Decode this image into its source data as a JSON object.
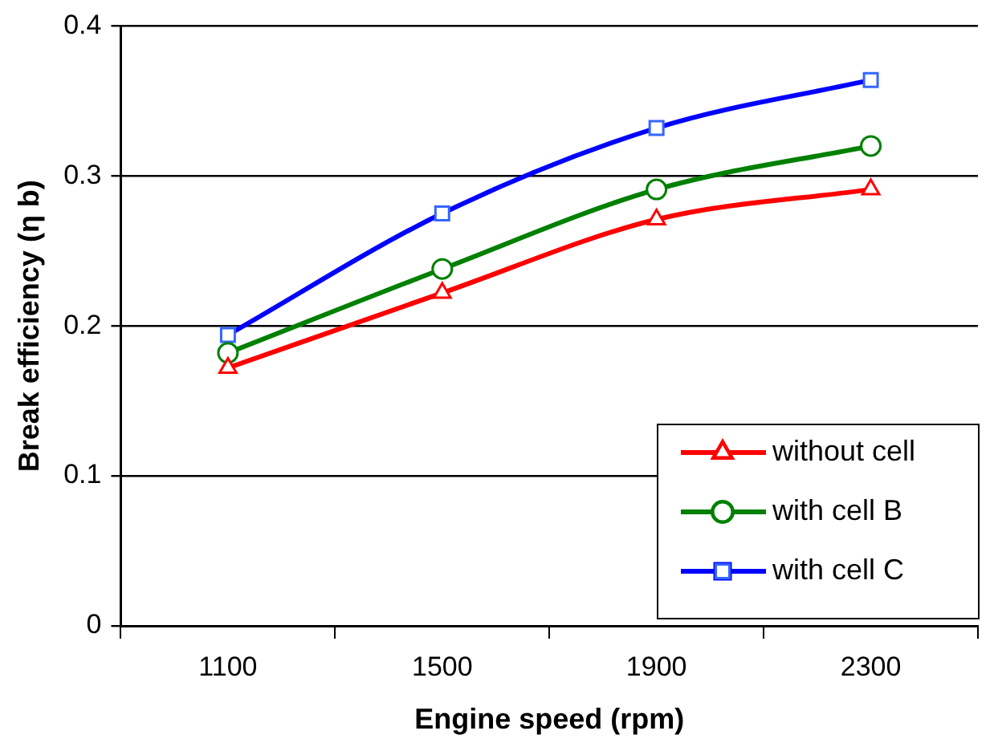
{
  "chart_data": {
    "type": "line",
    "xlabel": "Engine speed (rpm)",
    "ylabel": "Break efficiency (η b)",
    "categories": [
      "1100",
      "1500",
      "1900",
      "2300"
    ],
    "series": [
      {
        "name": "without cell",
        "color": "#ff0000",
        "marker": "triangle",
        "values": [
          0.172,
          0.222,
          0.271,
          0.291
        ]
      },
      {
        "name": "with cell B",
        "color": "#008000",
        "marker": "circle",
        "values": [
          0.182,
          0.238,
          0.291,
          0.32
        ]
      },
      {
        "name": "with cell C",
        "color": "#0000ff",
        "marker": "square",
        "values": [
          0.194,
          0.275,
          0.332,
          0.364
        ]
      }
    ],
    "ylim": [
      0,
      0.4
    ],
    "yticks": [
      0,
      0.1,
      0.2,
      0.3,
      0.4
    ],
    "grid": "y",
    "legend": "bottom right",
    "line_style": "solid"
  }
}
